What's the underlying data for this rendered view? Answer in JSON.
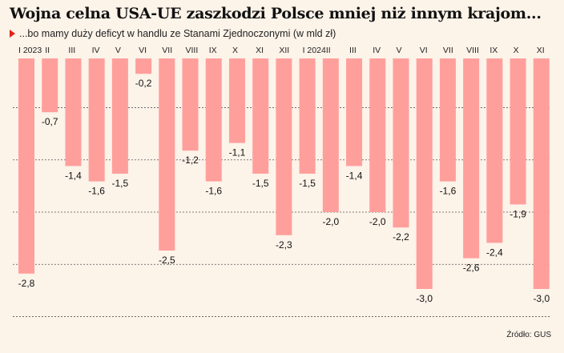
{
  "title": "Wojna celna USA-UE zaszkodzi Polsce mniej niż innym krajom...",
  "subtitle": "...bo mamy duży deficyt w handlu ze Stanami Zjednoczonymi (w mld zł)",
  "source": "Źródło: GUS",
  "colors": {
    "bar": "#ff9f9c",
    "background": "#fcf3e9",
    "marker": "#e2231a",
    "grid": "#555555"
  },
  "chart_data": {
    "type": "bar",
    "categories": [
      "I 2023",
      "II",
      "III",
      "IV",
      "V",
      "VI",
      "VII",
      "VIII",
      "IX",
      "X",
      "XI",
      "XII",
      "I 2024",
      "II",
      "III",
      "IV",
      "V",
      "VI",
      "VII",
      "VIII",
      "IX",
      "X",
      "XI"
    ],
    "values": [
      -2.8,
      -0.7,
      -1.4,
      -1.6,
      -1.5,
      -0.2,
      -2.5,
      -1.2,
      -1.6,
      -1.1,
      -1.5,
      -2.3,
      -1.5,
      -2.0,
      -1.4,
      -2.0,
      -2.2,
      -3.0,
      -1.6,
      -2.6,
      -2.4,
      -1.9,
      -3.0
    ],
    "value_labels": [
      "-2,8",
      "-0,7",
      "-1,4",
      "-1,6",
      "-1,5",
      "-0,2",
      "-2,5",
      "-1,2",
      "-1,6",
      "-1,1",
      "-1,5",
      "-2,3",
      "-1,5",
      "-2,0",
      "-1,4",
      "-2,0",
      "-2,2",
      "-3,0",
      "-1,6",
      "-2,6",
      "-2,4",
      "-1,9",
      "-3,0"
    ],
    "ylim": [
      -3.4,
      0
    ],
    "grid": true,
    "xlabel": "",
    "ylabel": ""
  }
}
